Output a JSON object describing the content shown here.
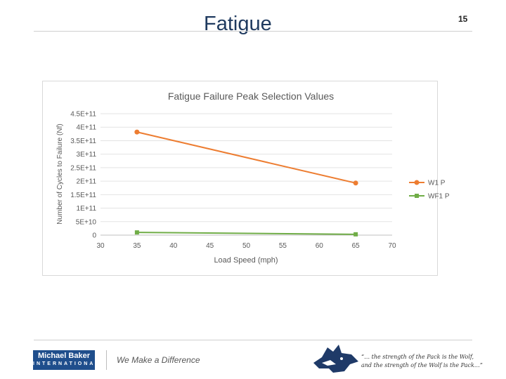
{
  "slide": {
    "title": "Fatigue",
    "page_number": "15"
  },
  "footer": {
    "logo_line1": "Michael Baker",
    "logo_line2": "INTERNATIONAL",
    "tagline": "We Make a Difference",
    "quote_line1": "“… the strength of the Pack is the Wolf,",
    "quote_line2": "and the strength of the Wolf is the Pack…”",
    "wolf_icon": "wolf-head-icon"
  },
  "chart_data": {
    "type": "line",
    "title": "Fatigue Failure Peak Selection Values",
    "xlabel": "Load Speed (mph)",
    "ylabel": "Number of Cycles to Failure (Nf)",
    "xlim": [
      30,
      70
    ],
    "ylim": [
      0,
      450000000000
    ],
    "x_ticks": [
      "30",
      "35",
      "40",
      "45",
      "50",
      "55",
      "60",
      "65",
      "70"
    ],
    "y_ticks": [
      "0",
      "5E+10",
      "1E+11",
      "1.5E+11",
      "2E+11",
      "2.5E+11",
      "3E+11",
      "3.5E+11",
      "4E+11",
      "4.5E+11"
    ],
    "grid": "horizontal",
    "legend": "right",
    "series": [
      {
        "name": "W1 P",
        "color": "#ed7d31",
        "marker": "circle",
        "points": [
          [
            35,
            382000000000
          ],
          [
            65,
            193000000000
          ]
        ]
      },
      {
        "name": "WF1 P",
        "color": "#70ad47",
        "marker": "square",
        "points": [
          [
            35,
            10000000000
          ],
          [
            65,
            3000000000
          ]
        ]
      }
    ]
  }
}
